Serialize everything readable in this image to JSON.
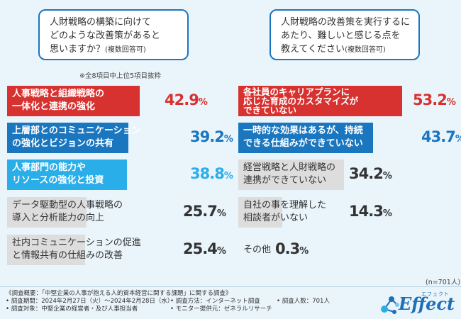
{
  "left": {
    "question": [
      "人財戦略の構築に向けて",
      "どのような改善策があると",
      "思いますか？"
    ],
    "question_note": "(複数回答可)",
    "note": "※全8項目中上位5項目抜粋"
  },
  "right": {
    "question": [
      "人財戦略の改善策を実行するに",
      "あたり、難しいと感じる点を",
      "教えてください"
    ],
    "question_note": "(複数回答可)"
  },
  "chart_data": [
    {
      "type": "bar",
      "orientation": "horizontal",
      "categories": [
        [
          "人事戦略と組織戦略の",
          "一体化と連携の強化"
        ],
        [
          "上層部とのコミュニケーション",
          "の強化とビジョンの共有"
        ],
        [
          "人事部門の能力や",
          "リソースの強化と投資"
        ],
        [
          "データ駆動型の人事戦略の",
          "導入と分析能力の向上"
        ],
        [
          "社内コミュニケーションの促進",
          "と情報共有の仕組みの改善"
        ]
      ],
      "values": [
        42.9,
        39.2,
        38.8,
        25.7,
        25.4
      ],
      "value_labels": [
        "42.9",
        "39.2",
        "38.8",
        "25.7",
        "25.4"
      ],
      "unit": "%",
      "colors": [
        "#d7322f",
        "#1a76bf",
        "#2aaee9",
        "#dddddd",
        "#dddddd"
      ],
      "label_colors": [
        "#d7322f",
        "#1a76bf",
        "#2aaee9",
        "#333333",
        "#333333"
      ]
    },
    {
      "type": "bar",
      "orientation": "horizontal",
      "categories": [
        [
          "各社員のキャリアプランに",
          "応じた育成のカスタマイズが",
          "できていない"
        ],
        [
          "一時的な効果はあるが、持続",
          "できる仕組みができていない"
        ],
        [
          "経営戦略と人財戦略の",
          "連携ができていない"
        ],
        [
          "自社の事を理解した",
          "相談者がいない"
        ],
        [
          "その他"
        ]
      ],
      "values": [
        53.2,
        43.7,
        34.2,
        14.3,
        0.3
      ],
      "value_labels": [
        "53.2",
        "43.7",
        "34.2",
        "14.3",
        "0.3"
      ],
      "unit": "%",
      "colors": [
        "#d7322f",
        "#1a76bf",
        "#dddddd",
        "#dddddd",
        "#dddddd"
      ],
      "label_colors": [
        "#d7322f",
        "#1a76bf",
        "#333333",
        "#333333",
        "#333333"
      ]
    }
  ],
  "sample_size": "(n=701人)",
  "survey": {
    "title": "《調査概要：「中堅企業の人事が抱える人的資本経営に関する課題」に関する調査》",
    "period": "• 調査期間：2024年2月27日（火）〜2024年2月28日（水）",
    "method": "• 調査方法：インターネット調査",
    "count": "• 調査人数：701人",
    "target": "• 調査対象：中堅企業の経営者・及び人事担当者",
    "provider": "• モニター提供元：ゼネラルリサーチ"
  },
  "logo": {
    "word": "Effect",
    "ruby": "エフェクト"
  }
}
